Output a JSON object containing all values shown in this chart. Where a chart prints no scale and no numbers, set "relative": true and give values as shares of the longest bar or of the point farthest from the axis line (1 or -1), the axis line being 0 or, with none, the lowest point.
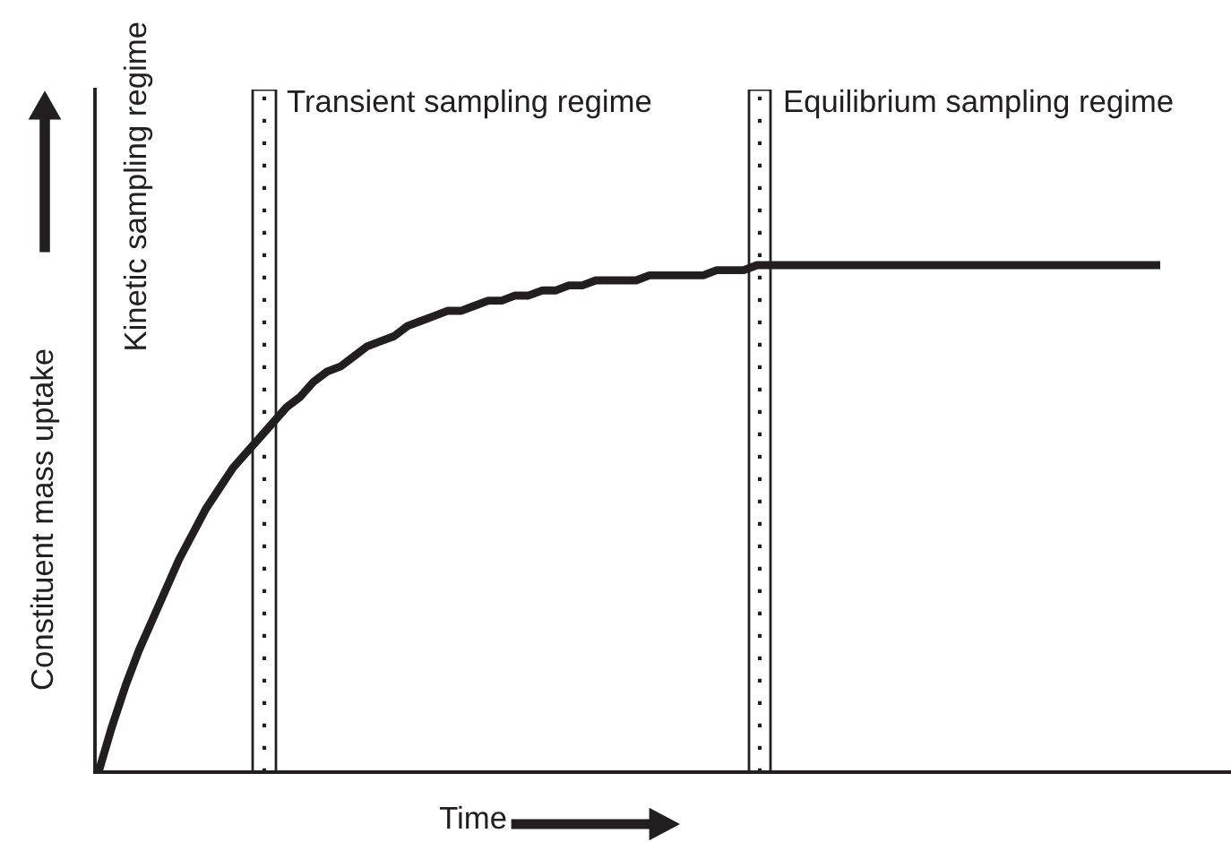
{
  "chart_data": {
    "type": "line",
    "relative": true,
    "xlabel": "Time",
    "ylabel": "Constituent mass uptake",
    "categories": [
      null,
      null,
      null,
      null,
      null,
      null,
      null,
      null,
      null,
      null,
      null,
      null,
      null,
      null,
      null,
      null,
      null,
      null,
      null,
      null,
      null,
      null,
      null,
      null,
      null,
      null,
      null,
      null,
      null,
      null,
      null,
      null,
      null,
      null,
      null,
      null,
      null,
      null,
      null,
      null,
      null,
      null,
      null,
      null,
      null,
      null,
      null,
      null,
      null,
      null,
      null,
      null,
      null,
      null,
      null,
      null,
      null,
      null,
      null,
      null,
      null,
      null,
      null,
      null,
      null,
      null,
      null,
      null,
      null,
      null,
      null,
      null,
      null,
      null,
      null,
      null,
      null,
      null,
      null,
      null
    ],
    "series": [
      {
        "color": "#231f20",
        "values": [
          0,
          0.09,
          0.17,
          0.24,
          0.3,
          0.36,
          0.42,
          0.47,
          0.52,
          0.56,
          0.6,
          0.63,
          0.66,
          0.69,
          0.72,
          0.74,
          0.77,
          0.79,
          0.8,
          0.82,
          0.84,
          0.85,
          0.86,
          0.88,
          0.89,
          0.9,
          0.91,
          0.91,
          0.92,
          0.93,
          0.93,
          0.94,
          0.94,
          0.95,
          0.95,
          0.96,
          0.96,
          0.97,
          0.97,
          0.97,
          0.97,
          0.98,
          0.98,
          0.98,
          0.98,
          0.98,
          0.99,
          0.99,
          0.99,
          1,
          1,
          1,
          1,
          1,
          1,
          1,
          1,
          1,
          1,
          1,
          1,
          1,
          1,
          1,
          1,
          1,
          1,
          1,
          1,
          1,
          1,
          1,
          1,
          1,
          1,
          1,
          1,
          1,
          1,
          1
        ]
      }
    ],
    "annotations": [
      "Kinetic sampling regime",
      "Transient sampling regime",
      "Equilibrium sampling regime"
    ]
  }
}
